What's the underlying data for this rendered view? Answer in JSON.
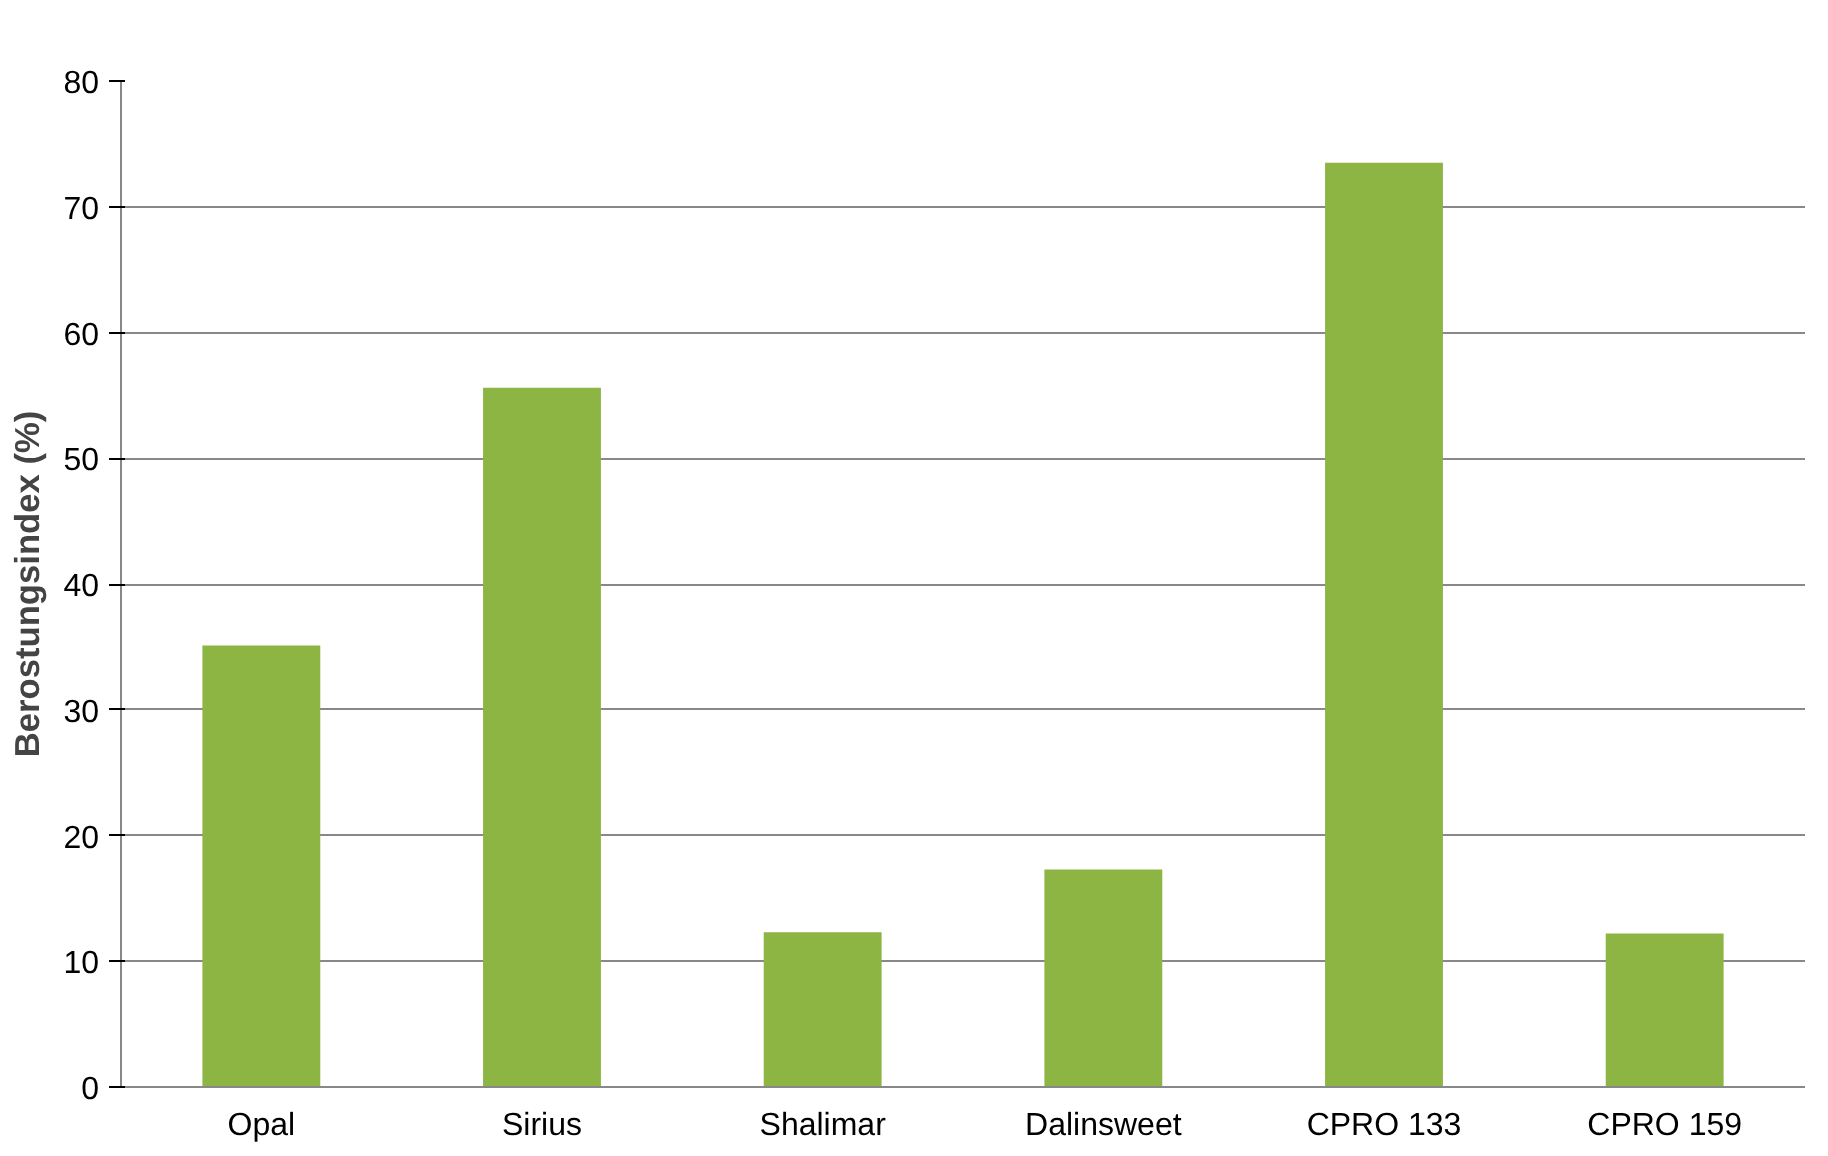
{
  "chart_data": {
    "type": "bar",
    "ylabel": "Berostungsindex (%)",
    "categories": [
      "Opal",
      "Sirius",
      "Shalimar",
      "Dalinsweet",
      "CPRO 133",
      "CPRO 159"
    ],
    "values": [
      35.1,
      55.6,
      12.3,
      17.3,
      73.5,
      12.2
    ],
    "color": "#8cb544",
    "ylim": [
      0,
      80
    ],
    "yticks": [
      0,
      10,
      20,
      30,
      40,
      50,
      60,
      70,
      80
    ],
    "grid": "y"
  }
}
